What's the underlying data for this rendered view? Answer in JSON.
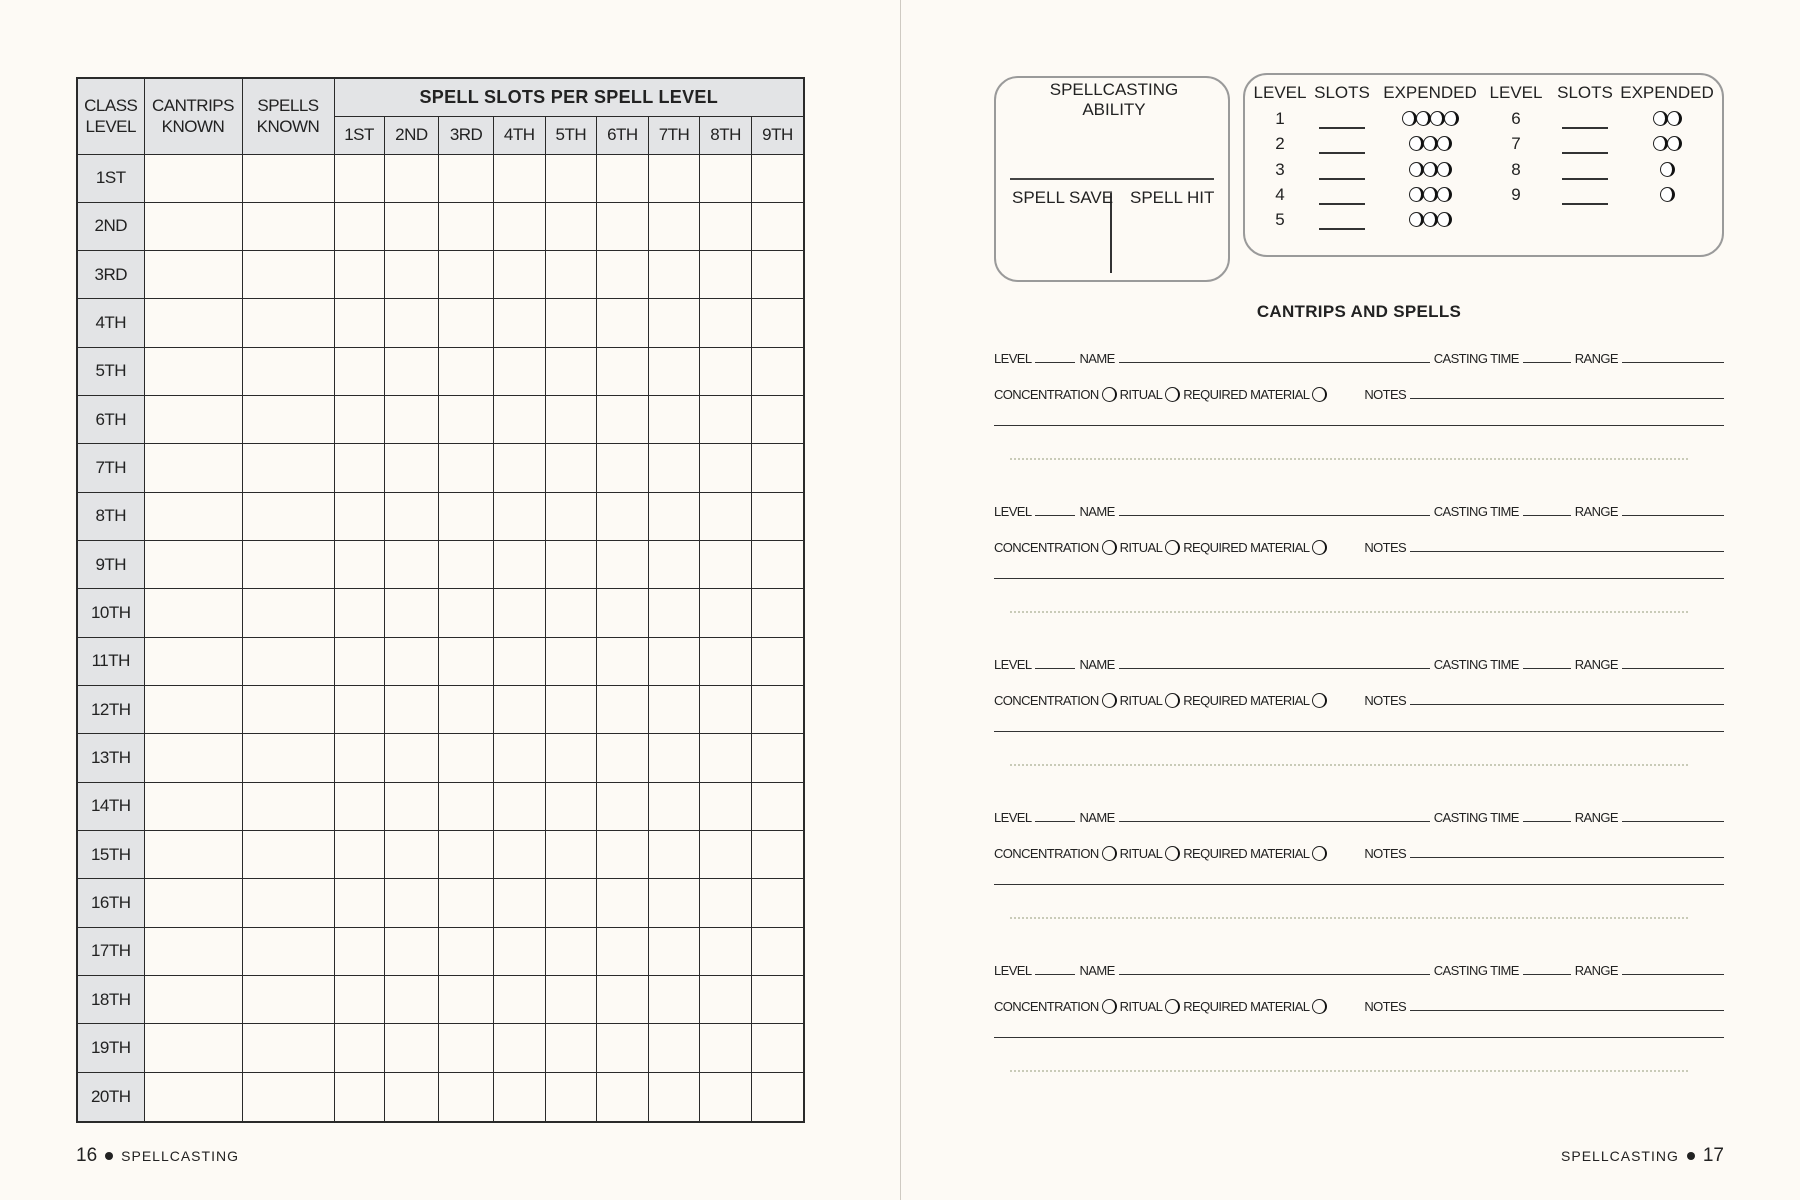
{
  "left_page": {
    "table": {
      "headers": {
        "class_level": "CLASS LEVEL",
        "cantrips_known": "CANTRIPS KNOWN",
        "spells_known": "SPELLS KNOWN",
        "spell_slots": "SPELL SLOTS PER SPELL LEVEL"
      },
      "slot_levels": [
        "1ST",
        "2ND",
        "3RD",
        "4TH",
        "5TH",
        "6TH",
        "7TH",
        "8TH",
        "9TH"
      ],
      "class_levels": [
        "1ST",
        "2ND",
        "3RD",
        "4TH",
        "5TH",
        "6TH",
        "7TH",
        "8TH",
        "9TH",
        "10TH",
        "11TH",
        "12TH",
        "13TH",
        "14TH",
        "15TH",
        "16TH",
        "17TH",
        "18TH",
        "19TH",
        "20TH"
      ]
    },
    "footer": {
      "page": "16",
      "section": "SPELLCASTING"
    }
  },
  "right_page": {
    "ability_box": {
      "title": "SPELLCASTING ABILITY",
      "spell_save": "SPELL SAVE",
      "spell_hit": "SPELL HIT"
    },
    "slots_box": {
      "headers": {
        "level": "LEVEL",
        "slots": "SLOTS",
        "expended": "EXPENDED"
      },
      "rows": [
        {
          "level": "1",
          "expended": 4
        },
        {
          "level": "2",
          "expended": 3
        },
        {
          "level": "3",
          "expended": 3
        },
        {
          "level": "4",
          "expended": 3
        },
        {
          "level": "5",
          "expended": 3
        },
        {
          "level": "6",
          "expended": 2
        },
        {
          "level": "7",
          "expended": 2
        },
        {
          "level": "8",
          "expended": 1
        },
        {
          "level": "9",
          "expended": 1
        }
      ]
    },
    "section_title": "CANTRIPS AND SPELLS",
    "entry_labels": {
      "level": "LEVEL",
      "name": "NAME",
      "casting_time": "CASTING TIME",
      "range": "RANGE",
      "concentration": "CONCENTRATION",
      "ritual": "RITUAL",
      "required_material": "REQUIRED MATERIAL",
      "notes": "NOTES"
    },
    "entry_count": 5,
    "footer": {
      "section": "SPELLCASTING",
      "page": "17"
    }
  }
}
